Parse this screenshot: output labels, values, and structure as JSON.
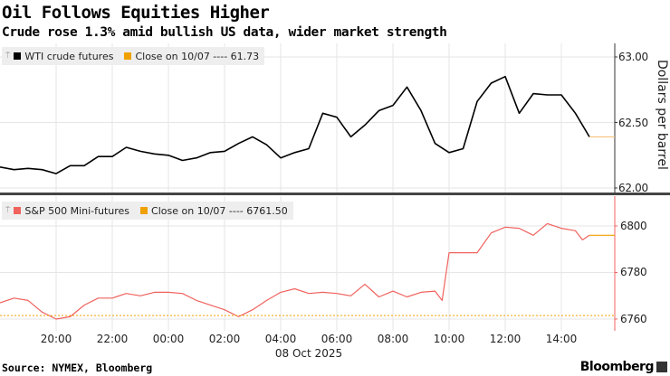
{
  "title": "Oil Follows Equities Higher",
  "subtitle": "Crude rose 1.3% amid bullish US data, wider market strength",
  "source": "Source: NYMEX, Bloomberg",
  "brand": "Bloomberg",
  "colors": {
    "wti": "#000000",
    "spx": "#f0625e",
    "close": "#f0a000",
    "grid": "#e6e6e6"
  },
  "chart_data": [
    {
      "type": "line",
      "legend": {
        "series": "WTI crude futures",
        "close": "Close on 10/07 ---- 61.73"
      },
      "ylabel": "Dollars per barrel",
      "yticks": [
        "63.00",
        "62.50",
        "62.00"
      ],
      "ytick_values": [
        63.0,
        62.5,
        62.0
      ],
      "ylim": [
        61.95,
        63.1
      ],
      "grid": true,
      "series": [
        {
          "name": "WTI crude futures",
          "x": [
            "18:00",
            "18:30",
            "19:00",
            "19:30",
            "20:00",
            "20:30",
            "21:00",
            "21:30",
            "22:00",
            "22:30",
            "23:00",
            "23:30",
            "00:00",
            "00:30",
            "01:00",
            "01:30",
            "02:00",
            "02:30",
            "03:00",
            "03:30",
            "04:00",
            "04:30",
            "05:00",
            "05:30",
            "06:00",
            "06:30",
            "07:00",
            "07:30",
            "08:00",
            "08:30",
            "09:00",
            "09:30",
            "10:00",
            "10:30",
            "11:00",
            "11:30",
            "12:00",
            "12:30",
            "13:00",
            "13:30",
            "14:00",
            "14:30",
            "15:00"
          ],
          "y": [
            62.16,
            62.14,
            62.15,
            62.14,
            62.11,
            62.17,
            62.17,
            62.24,
            62.24,
            62.31,
            62.28,
            62.26,
            62.25,
            62.21,
            62.23,
            62.27,
            62.28,
            62.34,
            62.39,
            62.33,
            62.23,
            62.27,
            62.3,
            62.57,
            62.54,
            62.39,
            62.48,
            62.59,
            62.63,
            62.77,
            62.59,
            62.34,
            62.27,
            62.3,
            62.66,
            62.8,
            62.85,
            62.57,
            62.72,
            62.71,
            62.71,
            62.57,
            62.39
          ]
        }
      ],
      "close_value": 61.73
    },
    {
      "type": "line",
      "legend": {
        "series": "S&P 500 Mini-futures",
        "close": "Close on 10/07 ---- 6761.50"
      },
      "yticks": [
        "6800",
        "6780",
        "6760"
      ],
      "ytick_values": [
        6800,
        6780,
        6760
      ],
      "ylim": [
        6755,
        6812
      ],
      "grid": true,
      "series": [
        {
          "name": "S&P 500 Mini-futures",
          "x": [
            "18:00",
            "18:30",
            "19:00",
            "19:30",
            "20:00",
            "20:30",
            "21:00",
            "21:30",
            "22:00",
            "22:30",
            "23:00",
            "23:30",
            "00:00",
            "00:30",
            "01:00",
            "01:30",
            "02:00",
            "02:30",
            "03:00",
            "03:30",
            "04:00",
            "04:30",
            "05:00",
            "05:30",
            "06:00",
            "06:30",
            "07:00",
            "07:30",
            "08:00",
            "08:30",
            "09:00",
            "09:30",
            "09:45",
            "10:00",
            "10:30",
            "11:00",
            "11:30",
            "12:00",
            "12:30",
            "13:00",
            "13:30",
            "14:00",
            "14:30",
            "14:45",
            "15:00"
          ],
          "y": [
            6767,
            6769,
            6768,
            6763,
            6760,
            6761,
            6766,
            6769,
            6769,
            6771,
            6770,
            6771.5,
            6771.5,
            6771,
            6768,
            6766,
            6764,
            6761,
            6764,
            6768,
            6771.5,
            6773,
            6771,
            6771.5,
            6771,
            6770,
            6775,
            6769.5,
            6772,
            6769.5,
            6771.5,
            6772,
            6768,
            6788.5,
            6788.5,
            6788.5,
            6797,
            6799.5,
            6799,
            6796,
            6801,
            6799,
            6798,
            6794,
            6796
          ]
        }
      ],
      "close_value": 6761.5
    }
  ],
  "xaxis": {
    "ticks": [
      "20:00",
      "22:00",
      "00:00",
      "02:00",
      "04:00",
      "06:00",
      "08:00",
      "10:00",
      "12:00",
      "14:00"
    ],
    "date_label": "08 Oct 2025"
  }
}
